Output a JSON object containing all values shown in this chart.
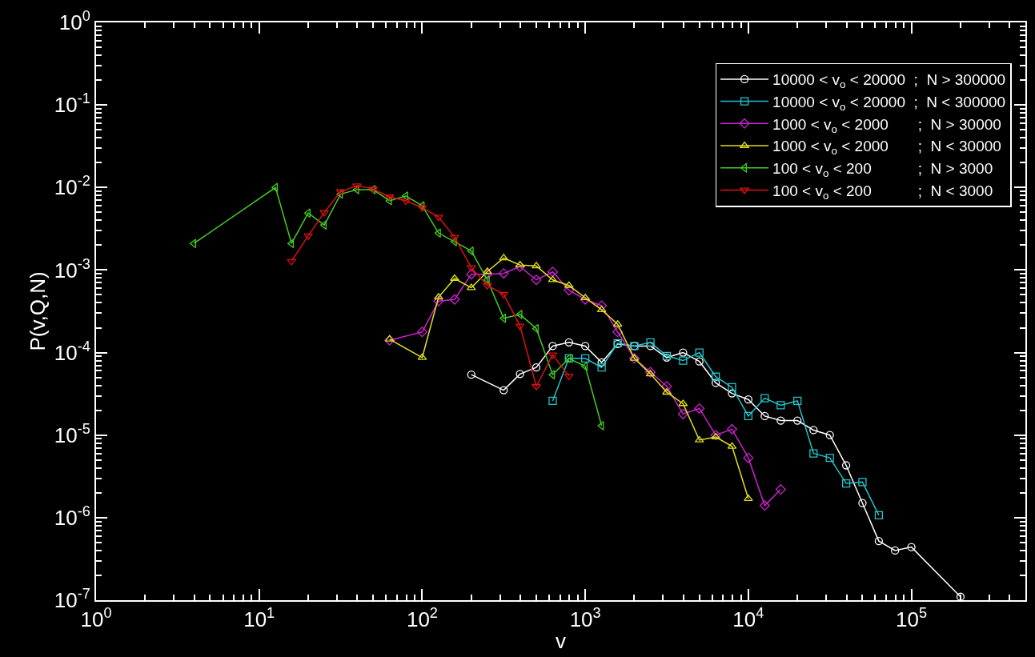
{
  "chart_data": {
    "type": "line",
    "xlabel": "v",
    "ylabel": "P(v,Q,N)",
    "log": "xy",
    "grid": false,
    "legend": "top right",
    "xlim": [
      1,
      500000
    ],
    "ylim": [
      1e-07,
      1
    ],
    "xticks": [
      {
        "value": 1,
        "label": "10$^{0}$"
      },
      {
        "value": 10,
        "label": "10$^{1}$"
      },
      {
        "value": 100,
        "label": "10$^{2}$"
      },
      {
        "value": 1000,
        "label": "10$^{3}$"
      },
      {
        "value": 10000,
        "label": "10$^{4}$"
      },
      {
        "value": 100000,
        "label": "10$^{5}$"
      }
    ],
    "yticks": [
      {
        "value": 1e-07,
        "label": "10$^{-7}$"
      },
      {
        "value": 1e-06,
        "label": "10$^{-6}$"
      },
      {
        "value": 1e-05,
        "label": "10$^{-5}$"
      },
      {
        "value": 0.0001,
        "label": "10$^{-4}$"
      },
      {
        "value": 0.001,
        "label": "10$^{-3}$"
      },
      {
        "value": 0.01,
        "label": "10$^{-2}$"
      },
      {
        "value": 0.1,
        "label": "10$^{-1}$"
      },
      {
        "value": 1,
        "label": "10$^{0}$"
      }
    ],
    "series": [
      {
        "name": "10000 < v$_{o}$ < 20000  ;  N > 300000",
        "color": "#ffffff",
        "marker": "circle",
        "x": [
          200,
          316,
          398,
          501,
          631,
          794,
          1000,
          1260,
          1580,
          2000,
          2510,
          3160,
          3980,
          5010,
          6310,
          7940,
          10000,
          12600,
          15800,
          20000,
          25100,
          31600,
          39800,
          50100,
          63100,
          79400,
          100000,
          200000
        ],
        "values": [
          5.4e-05,
          3.5e-05,
          5.5e-05,
          6.6e-05,
          0.00012,
          0.000133,
          0.00012,
          7.6e-05,
          0.000127,
          0.00012,
          0.00012,
          8.7e-05,
          0.0001,
          7.8e-05,
          4.3e-05,
          3.2e-05,
          2.7e-05,
          1.7e-05,
          1.5e-05,
          1.5e-05,
          1.15e-05,
          1e-05,
          4.3e-06,
          1.5e-06,
          5.2e-07,
          4e-07,
          4.4e-07,
          1.1e-07
        ]
      },
      {
        "name": "10000 < v$_{o}$ < 20000  ;  N < 300000",
        "color": "#22c4cc",
        "marker": "square",
        "x": [
          631,
          794,
          1000,
          1260,
          1580,
          2000,
          2510,
          3160,
          3980,
          5010,
          6310,
          7940,
          10000,
          12600,
          15800,
          20000,
          25100,
          31600,
          39800,
          50100,
          63100
        ],
        "values": [
          2.6e-05,
          8.5e-05,
          8.5e-05,
          6.6e-05,
          0.00013,
          0.00012,
          0.000133,
          9.1e-05,
          8e-05,
          0.0001,
          5.1e-05,
          3.8e-05,
          1.7e-05,
          2.8e-05,
          2.3e-05,
          2.6e-05,
          6e-06,
          5.3e-06,
          2.6e-06,
          2.7e-06,
          1.07e-06
        ]
      },
      {
        "name": "1000 < v$_{o}$ < 2000       ;  N > 30000",
        "color": "#cc22cc",
        "marker": "diamond",
        "x": [
          63.1,
          100,
          126,
          158,
          200,
          251,
          316,
          398,
          501,
          631,
          794,
          1000,
          1260,
          1580,
          2000,
          2510,
          3160,
          3980,
          5010,
          6310,
          7940,
          10000,
          12600,
          15800
        ],
        "values": [
          0.000141,
          0.000178,
          0.00042,
          0.00044,
          0.00089,
          0.00089,
          0.00091,
          0.0011,
          0.00076,
          0.00095,
          0.00057,
          0.00044,
          0.00037,
          0.000178,
          8.5e-05,
          5.8e-05,
          3.9e-05,
          1.8e-05,
          2.1e-05,
          1e-05,
          1.18e-05,
          5.3e-06,
          1.4e-06,
          2.2e-06
        ]
      },
      {
        "name": "1000 < v$_{o}$ < 2000       ;  N < 30000",
        "color": "#e0e020",
        "marker": "triangle",
        "x": [
          63.1,
          100,
          126,
          158,
          200,
          251,
          316,
          398,
          501,
          631,
          794,
          1000,
          1260,
          1580,
          2000,
          2510,
          3160,
          3980,
          5010,
          6310,
          7940,
          10000
        ],
        "values": [
          0.000145,
          8.7e-05,
          0.00047,
          0.00079,
          0.00061,
          0.00096,
          0.0014,
          0.00115,
          0.00112,
          0.00076,
          0.00065,
          0.00046,
          0.00033,
          0.00022,
          8.5e-05,
          5.5e-05,
          3.3e-05,
          2.4e-05,
          8.7e-06,
          9.5e-06,
          7.3e-06,
          1.7e-06
        ]
      },
      {
        "name": "100 < v$_{o}$ < 200           ;  N > 3000",
        "color": "#44cc22",
        "marker": "triangle-left",
        "x": [
          3.98,
          12.6,
          15.8,
          20.0,
          25.1,
          31.6,
          39.8,
          50.1,
          63.1,
          79.4,
          100,
          126,
          158,
          200,
          251,
          316,
          398,
          501,
          631,
          794,
          1000,
          1260
        ],
        "values": [
          0.0021,
          0.01,
          0.0021,
          0.0049,
          0.0035,
          0.0083,
          0.0094,
          0.0094,
          0.0069,
          0.0079,
          0.006,
          0.0028,
          0.0022,
          0.0017,
          0.00076,
          0.00026,
          0.00029,
          0.000195,
          5.4e-05,
          8.5e-05,
          6.8e-05,
          1.3e-05
        ]
      },
      {
        "name": "100 < v$_{o}$ < 200           ;  N < 3000",
        "color": "#dd1111",
        "marker": "triangle-down",
        "x": [
          15.8,
          20.0,
          25.1,
          31.6,
          39.8,
          50.1,
          63.1,
          79.4,
          100,
          126,
          158,
          200,
          251,
          316,
          398,
          501,
          631,
          794
        ],
        "values": [
          0.00128,
          0.0026,
          0.005,
          0.0089,
          0.0105,
          0.0096,
          0.0077,
          0.0069,
          0.0057,
          0.0044,
          0.0025,
          0.00107,
          0.00065,
          0.00051,
          0.00021,
          3.9e-05,
          9.4e-05,
          5.2e-05
        ]
      }
    ]
  }
}
